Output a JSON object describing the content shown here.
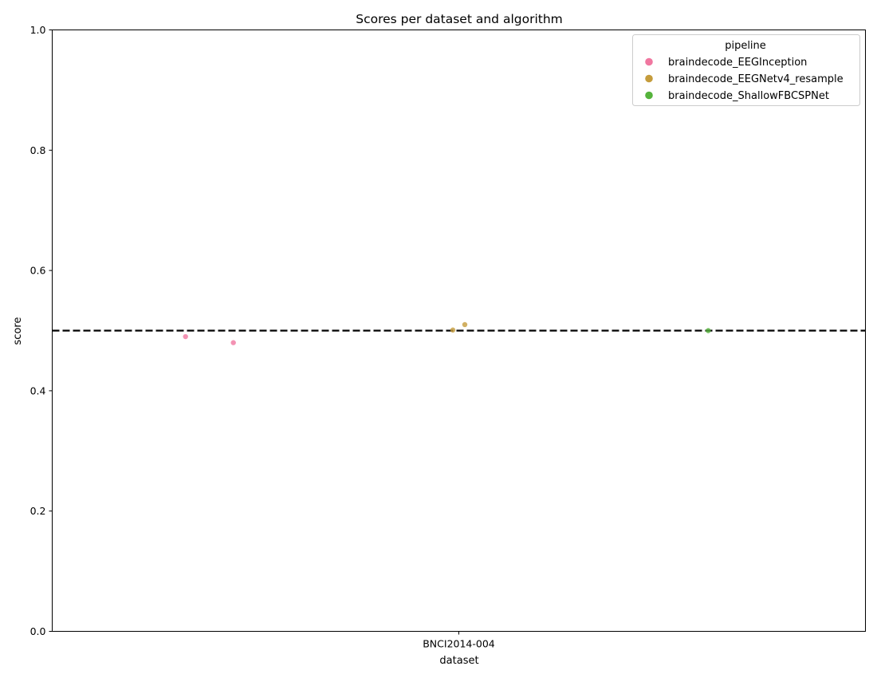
{
  "chart_data": {
    "type": "scatter",
    "title": "Scores per dataset and algorithm",
    "xlabel": "dataset",
    "ylabel": "score",
    "categories": [
      "BNCI2014-004"
    ],
    "ylim": [
      0,
      1
    ],
    "yticks": [
      "0.0",
      "0.2",
      "0.4",
      "0.6",
      "0.8",
      "1.0"
    ],
    "grid": false,
    "chance_level": 0.5,
    "legend": {
      "title": "pipeline",
      "placement": "top-right"
    },
    "series": [
      {
        "name": "braindecode_EEGInception",
        "color": "#f077a0",
        "points": [
          {
            "x": "BNCI2014-004",
            "y": 0.49
          },
          {
            "x": "BNCI2014-004",
            "y": 0.48
          }
        ]
      },
      {
        "name": "braindecode_EEGNetv4_resample",
        "color": "#c59c3c",
        "points": [
          {
            "x": "BNCI2014-004",
            "y": 0.501
          },
          {
            "x": "BNCI2014-004",
            "y": 0.51
          }
        ]
      },
      {
        "name": "braindecode_ShallowFBCSPNet",
        "color": "#55b33c",
        "points": [
          {
            "x": "BNCI2014-004",
            "y": 0.5
          }
        ]
      }
    ]
  }
}
